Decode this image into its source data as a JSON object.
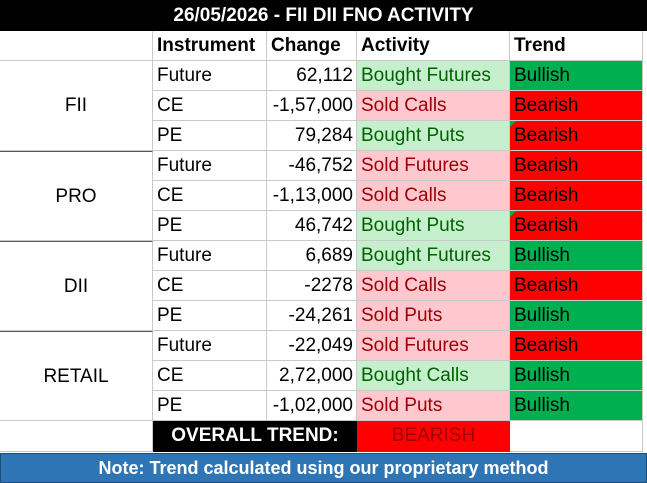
{
  "title": "26/05/2026 - FII DII FNO ACTIVITY",
  "headers": {
    "instrument": "Instrument",
    "change": "Change",
    "activity": "Activity",
    "trend": "Trend"
  },
  "groups": [
    {
      "name": "FII",
      "rows": [
        {
          "instrument": "Future",
          "change": "62,112",
          "activity": "Bought Futures",
          "trend": "Bullish"
        },
        {
          "instrument": "CE",
          "change": "-1,57,000",
          "activity": "Sold Calls",
          "trend": "Bearish"
        },
        {
          "instrument": "PE",
          "change": "79,284",
          "activity": "Bought Puts",
          "trend": "Bearish"
        }
      ]
    },
    {
      "name": "PRO",
      "rows": [
        {
          "instrument": "Future",
          "change": "-46,752",
          "activity": "Sold Futures",
          "trend": "Bearish"
        },
        {
          "instrument": "CE",
          "change": "-1,13,000",
          "activity": "Sold Calls",
          "trend": "Bearish"
        },
        {
          "instrument": "PE",
          "change": "46,742",
          "activity": "Bought Puts",
          "trend": "Bearish"
        }
      ]
    },
    {
      "name": "DII",
      "rows": [
        {
          "instrument": "Future",
          "change": "6,689",
          "activity": "Bought Futures",
          "trend": "Bullish"
        },
        {
          "instrument": "CE",
          "change": "-2278",
          "activity": "Sold Calls",
          "trend": "Bearish"
        },
        {
          "instrument": "PE",
          "change": "-24,261",
          "activity": "Sold Puts",
          "trend": "Bullish"
        }
      ]
    },
    {
      "name": "RETAIL",
      "rows": [
        {
          "instrument": "Future",
          "change": "-22,049",
          "activity": "Sold Futures",
          "trend": "Bearish"
        },
        {
          "instrument": "CE",
          "change": "2,72,000",
          "activity": "Bought Calls",
          "trend": "Bullish"
        },
        {
          "instrument": "PE",
          "change": "-1,02,000",
          "activity": "Sold Puts",
          "trend": "Bullish"
        }
      ]
    }
  ],
  "overall": {
    "label": "OVERALL TREND:",
    "value": "BEARISH"
  },
  "note": "Note: Trend calculated using our proprietary method",
  "colors": {
    "bullish": "#00b050",
    "bearish": "#ff0000",
    "bought_fill": "#c6efce",
    "sold_fill": "#ffc7ce",
    "note_bar": "#2e75b6"
  }
}
